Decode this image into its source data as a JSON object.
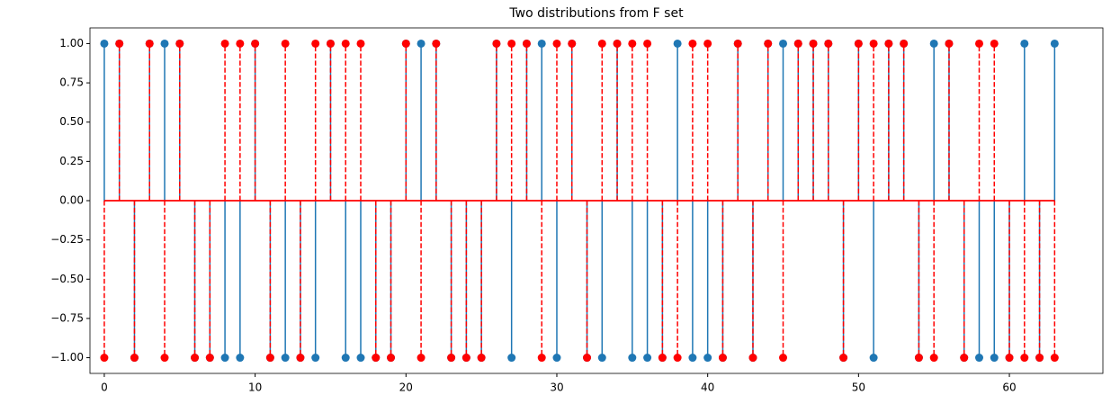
{
  "chart_data": {
    "type": "stem",
    "title": "Two distributions from F set",
    "x": [
      0,
      1,
      2,
      3,
      4,
      5,
      6,
      7,
      8,
      9,
      10,
      11,
      12,
      13,
      14,
      15,
      16,
      17,
      18,
      19,
      20,
      21,
      22,
      23,
      24,
      25,
      26,
      27,
      28,
      29,
      30,
      31,
      32,
      33,
      34,
      35,
      36,
      37,
      38,
      39,
      40,
      41,
      42,
      43,
      44,
      45,
      46,
      47,
      48,
      49,
      50,
      51,
      52,
      53,
      54,
      55,
      56,
      57,
      58,
      59,
      60,
      61,
      62,
      63
    ],
    "series": [
      {
        "color": "#1f77b4",
        "linestyle": "solid",
        "values": [
          1,
          1,
          -1,
          1,
          1,
          1,
          -1,
          -1,
          -1,
          -1,
          1,
          -1,
          -1,
          -1,
          -1,
          1,
          -1,
          -1,
          -1,
          -1,
          1,
          1,
          1,
          -1,
          -1,
          -1,
          1,
          -1,
          1,
          1,
          -1,
          1,
          -1,
          -1,
          1,
          -1,
          -1,
          -1,
          1,
          -1,
          -1,
          -1,
          1,
          -1,
          1,
          1,
          1,
          1,
          1,
          -1,
          1,
          -1,
          1,
          1,
          -1,
          1,
          1,
          -1,
          -1,
          -1,
          -1,
          1,
          -1,
          1
        ]
      },
      {
        "color": "#ff0000",
        "linestyle": "dashed",
        "values": [
          -1,
          1,
          -1,
          1,
          -1,
          1,
          -1,
          -1,
          1,
          1,
          1,
          -1,
          1,
          -1,
          1,
          1,
          1,
          1,
          -1,
          -1,
          1,
          -1,
          1,
          -1,
          -1,
          -1,
          1,
          1,
          1,
          -1,
          1,
          1,
          -1,
          1,
          1,
          1,
          1,
          -1,
          -1,
          1,
          1,
          -1,
          1,
          -1,
          1,
          -1,
          1,
          1,
          1,
          -1,
          1,
          1,
          1,
          1,
          -1,
          -1,
          1,
          -1,
          1,
          1,
          -1,
          -1,
          -1,
          -1
        ]
      }
    ],
    "xlim": [
      -0.95,
      66.2
    ],
    "ylim": [
      -1.1,
      1.1
    ],
    "xticks": [
      0,
      10,
      20,
      30,
      40,
      50,
      60
    ],
    "yticks": [
      {
        "value": -1,
        "label": "−1.00"
      },
      {
        "value": -0.75,
        "label": "−0.75"
      },
      {
        "value": -0.5,
        "label": "−0.50"
      },
      {
        "value": -0.25,
        "label": "−0.25"
      },
      {
        "value": 0,
        "label": "0.00"
      },
      {
        "value": 0.25,
        "label": "0.25"
      },
      {
        "value": 0.5,
        "label": "0.50"
      },
      {
        "value": 0.75,
        "label": "0.75"
      },
      {
        "value": 1,
        "label": "1.00"
      }
    ],
    "baseline_color": "#ff0000"
  }
}
